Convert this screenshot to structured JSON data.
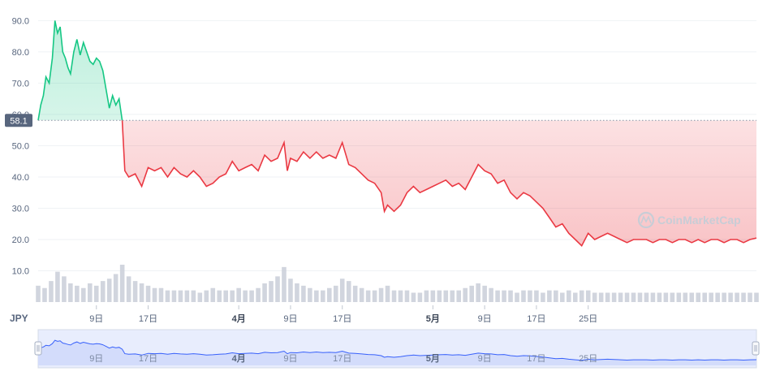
{
  "chart_data": {
    "type": "area",
    "currency": "JPY",
    "watermark": "CoinMarketCap",
    "reference_value": 58.1,
    "reference_label": "58.1",
    "y_ticks": [
      {
        "value": 10,
        "label": "10.0"
      },
      {
        "value": 20,
        "label": "20.0"
      },
      {
        "value": 30,
        "label": "30.0"
      },
      {
        "value": 40,
        "label": "40.0"
      },
      {
        "value": 50,
        "label": "50.0"
      },
      {
        "value": 60,
        "label": "60.0"
      },
      {
        "value": 70,
        "label": "70.0"
      },
      {
        "value": 80,
        "label": "80.0"
      },
      {
        "value": 90,
        "label": "90.0"
      }
    ],
    "ylim": [
      0,
      94
    ],
    "x_range_day": [
      0,
      111
    ],
    "x_ticks": [
      {
        "day": 9,
        "label": "9日",
        "bold": false
      },
      {
        "day": 17,
        "label": "17日",
        "bold": false
      },
      {
        "day": 31,
        "label": "4月",
        "bold": true
      },
      {
        "day": 39,
        "label": "9日",
        "bold": false
      },
      {
        "day": 47,
        "label": "17日",
        "bold": false
      },
      {
        "day": 61,
        "label": "5月",
        "bold": true
      },
      {
        "day": 69,
        "label": "9日",
        "bold": false
      },
      {
        "day": 77,
        "label": "17日",
        "bold": false
      },
      {
        "day": 85,
        "label": "25日",
        "bold": false
      }
    ],
    "colors": {
      "up": "#16c784",
      "down": "#ea3943",
      "navigator": "#3861fb"
    },
    "price_series": [
      [
        0,
        58.1
      ],
      [
        0.4,
        63
      ],
      [
        0.8,
        66
      ],
      [
        1.2,
        72
      ],
      [
        1.7,
        70
      ],
      [
        2.2,
        78
      ],
      [
        2.6,
        90
      ],
      [
        3.0,
        86
      ],
      [
        3.4,
        88
      ],
      [
        3.8,
        80
      ],
      [
        4.2,
        78
      ],
      [
        4.6,
        75
      ],
      [
        5.0,
        73
      ],
      [
        5.5,
        80
      ],
      [
        6.0,
        84
      ],
      [
        6.5,
        79
      ],
      [
        7.0,
        83
      ],
      [
        7.5,
        80
      ],
      [
        8.0,
        77
      ],
      [
        8.5,
        76
      ],
      [
        9.0,
        78
      ],
      [
        9.5,
        77
      ],
      [
        10.0,
        74
      ],
      [
        10.5,
        68
      ],
      [
        11.0,
        62
      ],
      [
        11.5,
        66
      ],
      [
        12.0,
        63
      ],
      [
        12.5,
        65
      ],
      [
        13.0,
        58.0
      ],
      [
        13.4,
        42
      ],
      [
        14.0,
        40
      ],
      [
        15.0,
        41
      ],
      [
        16.0,
        37
      ],
      [
        17.0,
        43
      ],
      [
        18.0,
        42
      ],
      [
        19.0,
        43
      ],
      [
        20.0,
        40
      ],
      [
        21.0,
        43
      ],
      [
        22.0,
        41
      ],
      [
        23.0,
        40
      ],
      [
        24.0,
        42
      ],
      [
        25.0,
        40
      ],
      [
        26.0,
        37
      ],
      [
        27.0,
        38
      ],
      [
        28.0,
        40
      ],
      [
        29.0,
        41
      ],
      [
        30.0,
        45
      ],
      [
        31.0,
        42
      ],
      [
        32.0,
        43
      ],
      [
        33.0,
        44
      ],
      [
        34.0,
        42
      ],
      [
        35.0,
        47
      ],
      [
        36.0,
        45
      ],
      [
        37.0,
        46
      ],
      [
        38.0,
        51
      ],
      [
        38.5,
        42
      ],
      [
        39.0,
        46
      ],
      [
        40.0,
        45
      ],
      [
        41.0,
        48
      ],
      [
        42.0,
        46
      ],
      [
        43.0,
        48
      ],
      [
        44.0,
        46
      ],
      [
        45.0,
        47
      ],
      [
        46.0,
        46
      ],
      [
        47.0,
        51
      ],
      [
        48.0,
        44
      ],
      [
        49.0,
        43
      ],
      [
        50.0,
        41
      ],
      [
        51.0,
        39
      ],
      [
        52.0,
        38
      ],
      [
        53.0,
        35
      ],
      [
        53.5,
        29
      ],
      [
        54.0,
        31
      ],
      [
        55.0,
        29
      ],
      [
        56.0,
        31
      ],
      [
        57.0,
        35
      ],
      [
        58.0,
        37
      ],
      [
        59.0,
        35
      ],
      [
        60.0,
        36
      ],
      [
        61.0,
        37
      ],
      [
        62.0,
        38
      ],
      [
        63.0,
        39
      ],
      [
        64.0,
        37
      ],
      [
        65.0,
        38
      ],
      [
        66.0,
        36
      ],
      [
        67.0,
        40
      ],
      [
        68.0,
        44
      ],
      [
        69.0,
        42
      ],
      [
        70.0,
        41
      ],
      [
        71.0,
        38
      ],
      [
        72.0,
        39
      ],
      [
        73.0,
        35
      ],
      [
        74.0,
        33
      ],
      [
        75.0,
        35
      ],
      [
        76.0,
        34
      ],
      [
        77.0,
        32
      ],
      [
        78.0,
        30
      ],
      [
        79.0,
        27
      ],
      [
        80.0,
        24
      ],
      [
        81.0,
        25
      ],
      [
        82.0,
        22
      ],
      [
        83.0,
        20
      ],
      [
        84.0,
        18
      ],
      [
        84.5,
        20
      ],
      [
        85.0,
        22
      ],
      [
        86.0,
        20
      ],
      [
        87.0,
        21
      ],
      [
        88.0,
        22
      ],
      [
        89.0,
        21
      ],
      [
        90.0,
        20
      ],
      [
        91.0,
        19
      ],
      [
        92.0,
        20
      ],
      [
        93.0,
        20
      ],
      [
        94.0,
        20
      ],
      [
        95.0,
        19
      ],
      [
        96.0,
        20
      ],
      [
        97.0,
        20
      ],
      [
        98.0,
        19
      ],
      [
        99.0,
        20
      ],
      [
        100.0,
        20
      ],
      [
        101.0,
        19
      ],
      [
        102.0,
        20
      ],
      [
        103.0,
        19
      ],
      [
        104.0,
        20
      ],
      [
        105.0,
        20
      ],
      [
        106.0,
        19
      ],
      [
        107.0,
        20
      ],
      [
        108.0,
        20
      ],
      [
        109.0,
        19
      ],
      [
        110.0,
        20
      ],
      [
        111.0,
        20.5
      ]
    ],
    "volume_series": [
      [
        0,
        7
      ],
      [
        1,
        6
      ],
      [
        2,
        9
      ],
      [
        3,
        13
      ],
      [
        4,
        11
      ],
      [
        5,
        8
      ],
      [
        6,
        7
      ],
      [
        7,
        6
      ],
      [
        8,
        8
      ],
      [
        9,
        7
      ],
      [
        10,
        9
      ],
      [
        11,
        10
      ],
      [
        12,
        12
      ],
      [
        13,
        16
      ],
      [
        14,
        11
      ],
      [
        15,
        9
      ],
      [
        16,
        8
      ],
      [
        17,
        7
      ],
      [
        18,
        6
      ],
      [
        19,
        6
      ],
      [
        20,
        5
      ],
      [
        21,
        5
      ],
      [
        22,
        5
      ],
      [
        23,
        5
      ],
      [
        24,
        5
      ],
      [
        25,
        4
      ],
      [
        26,
        5
      ],
      [
        27,
        6
      ],
      [
        28,
        5
      ],
      [
        29,
        5
      ],
      [
        30,
        5
      ],
      [
        31,
        6
      ],
      [
        32,
        5
      ],
      [
        33,
        5
      ],
      [
        34,
        6
      ],
      [
        35,
        8
      ],
      [
        36,
        9
      ],
      [
        37,
        11
      ],
      [
        38,
        15
      ],
      [
        39,
        10
      ],
      [
        40,
        8
      ],
      [
        41,
        7
      ],
      [
        42,
        6
      ],
      [
        43,
        5
      ],
      [
        44,
        5
      ],
      [
        45,
        6
      ],
      [
        46,
        7
      ],
      [
        47,
        10
      ],
      [
        48,
        9
      ],
      [
        49,
        7
      ],
      [
        50,
        6
      ],
      [
        51,
        5
      ],
      [
        52,
        5
      ],
      [
        53,
        6
      ],
      [
        54,
        7
      ],
      [
        55,
        5
      ],
      [
        56,
        5
      ],
      [
        57,
        5
      ],
      [
        58,
        4
      ],
      [
        59,
        4
      ],
      [
        60,
        5
      ],
      [
        61,
        5
      ],
      [
        62,
        5
      ],
      [
        63,
        5
      ],
      [
        64,
        5
      ],
      [
        65,
        5
      ],
      [
        66,
        6
      ],
      [
        67,
        7
      ],
      [
        68,
        8
      ],
      [
        69,
        7
      ],
      [
        70,
        6
      ],
      [
        71,
        5
      ],
      [
        72,
        5
      ],
      [
        73,
        5
      ],
      [
        74,
        4
      ],
      [
        75,
        5
      ],
      [
        76,
        5
      ],
      [
        77,
        5
      ],
      [
        78,
        4
      ],
      [
        79,
        5
      ],
      [
        80,
        5
      ],
      [
        81,
        4
      ],
      [
        82,
        5
      ],
      [
        83,
        4
      ],
      [
        84,
        5
      ],
      [
        85,
        5
      ],
      [
        86,
        4
      ],
      [
        87,
        4
      ],
      [
        88,
        4
      ],
      [
        89,
        4
      ],
      [
        90,
        4
      ],
      [
        91,
        4
      ],
      [
        92,
        4
      ],
      [
        93,
        4
      ],
      [
        94,
        4
      ],
      [
        95,
        4
      ],
      [
        96,
        4
      ],
      [
        97,
        4
      ],
      [
        98,
        4
      ],
      [
        99,
        4
      ],
      [
        100,
        4
      ],
      [
        101,
        4
      ],
      [
        102,
        4
      ],
      [
        103,
        4
      ],
      [
        104,
        4
      ],
      [
        105,
        4
      ],
      [
        106,
        4
      ],
      [
        107,
        4
      ],
      [
        108,
        4
      ],
      [
        109,
        4
      ],
      [
        110,
        4
      ],
      [
        111,
        4
      ]
    ]
  },
  "navigator": {
    "left_handle": "left-handle-grip",
    "right_handle": "right-handle-grip"
  }
}
